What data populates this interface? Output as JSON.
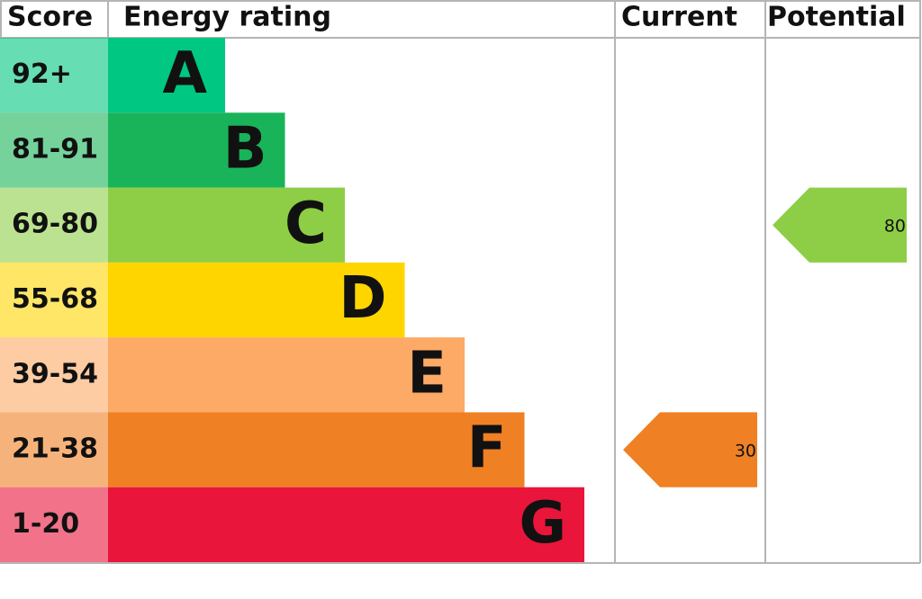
{
  "chart_data": {
    "type": "epc",
    "headers": {
      "score": "Score",
      "rating": "Energy rating",
      "current": "Current",
      "potential": "Potential"
    },
    "bands": [
      {
        "score": "92+",
        "letter": "A",
        "color": "#00c781"
      },
      {
        "score": "81-91",
        "letter": "B",
        "color": "#19b459"
      },
      {
        "score": "69-80",
        "letter": "C",
        "color": "#8dce46"
      },
      {
        "score": "55-68",
        "letter": "D",
        "color": "#ffd500"
      },
      {
        "score": "39-54",
        "letter": "E",
        "color": "#fcaa65"
      },
      {
        "score": "21-38",
        "letter": "F",
        "color": "#ef8023"
      },
      {
        "score": "1-20",
        "letter": "G",
        "color": "#e9153b"
      }
    ],
    "current": {
      "value": 30
    },
    "potential": {
      "value": 80
    }
  }
}
